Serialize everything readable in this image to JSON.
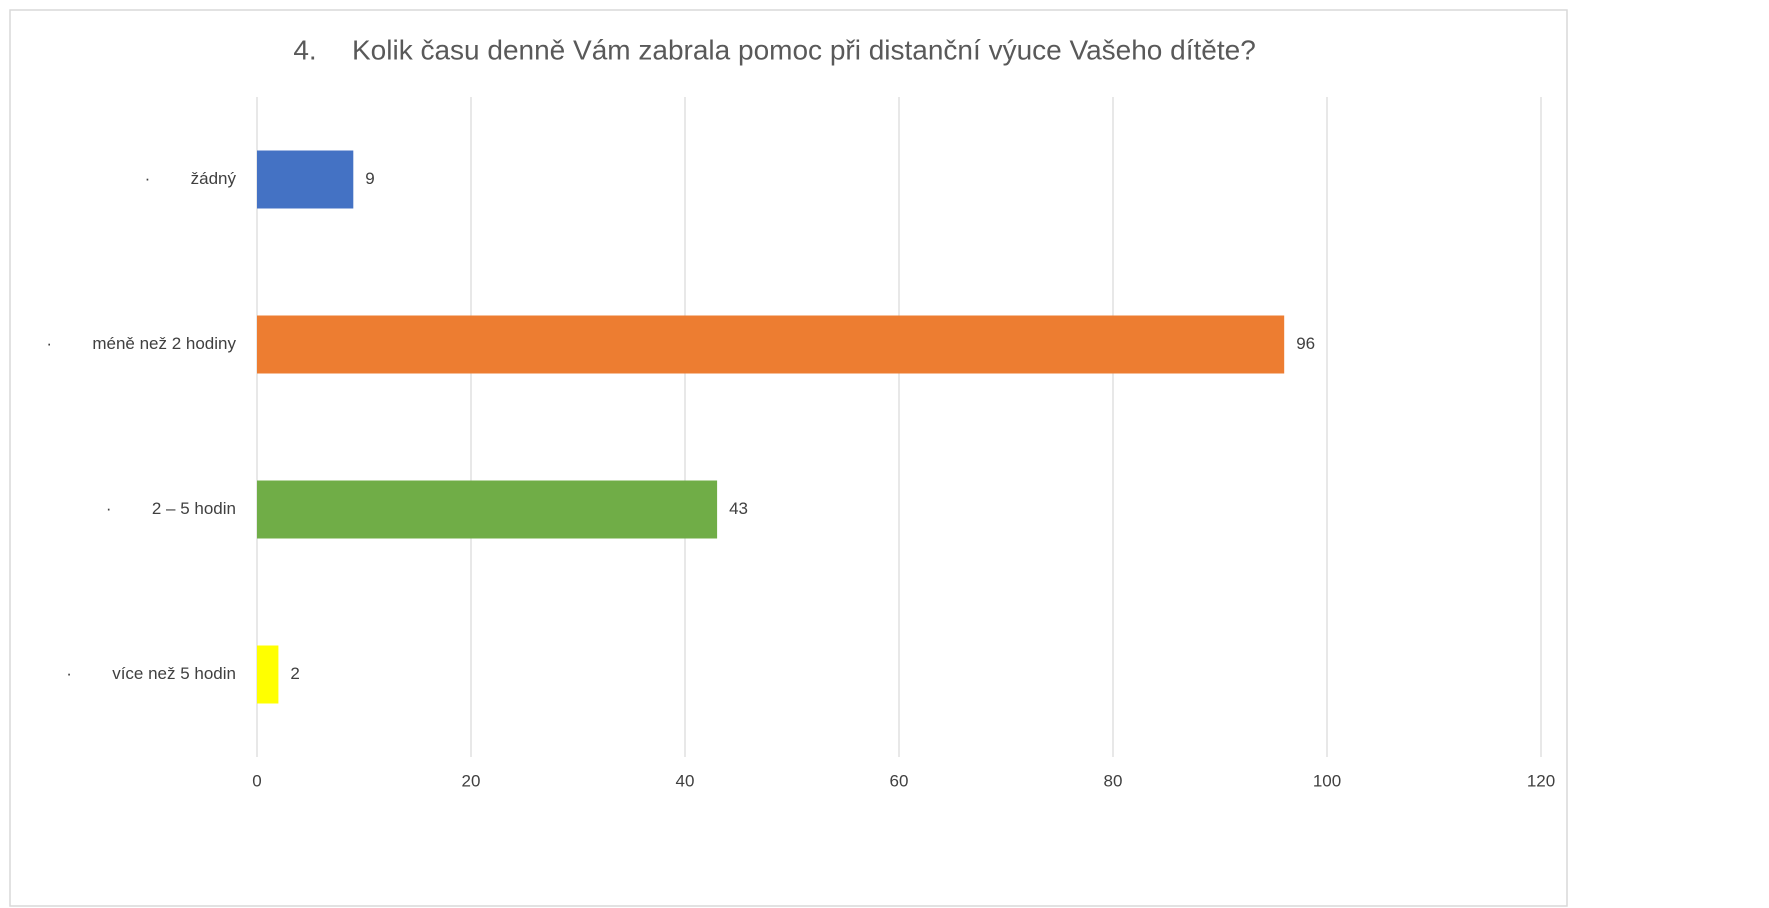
{
  "chart_data": {
    "type": "bar",
    "orientation": "horizontal",
    "title_number": "4.",
    "title": "Kolik času denně Vám zabrala pomoc při distanční výuce Vašeho dítěte?",
    "bullets": [
      "·",
      "·",
      "·",
      "·"
    ],
    "categories": [
      "žádný",
      "méně než 2 hodiny",
      "2 – 5 hodin",
      "více než 5 hodin"
    ],
    "values": [
      9,
      96,
      43,
      2
    ],
    "colors": [
      "#4472c4",
      "#ed7d31",
      "#70ad47",
      "#ffff00"
    ],
    "xlim": [
      0,
      120
    ],
    "xticks": [
      0,
      20,
      40,
      60,
      80,
      100,
      120
    ],
    "grid": true
  }
}
